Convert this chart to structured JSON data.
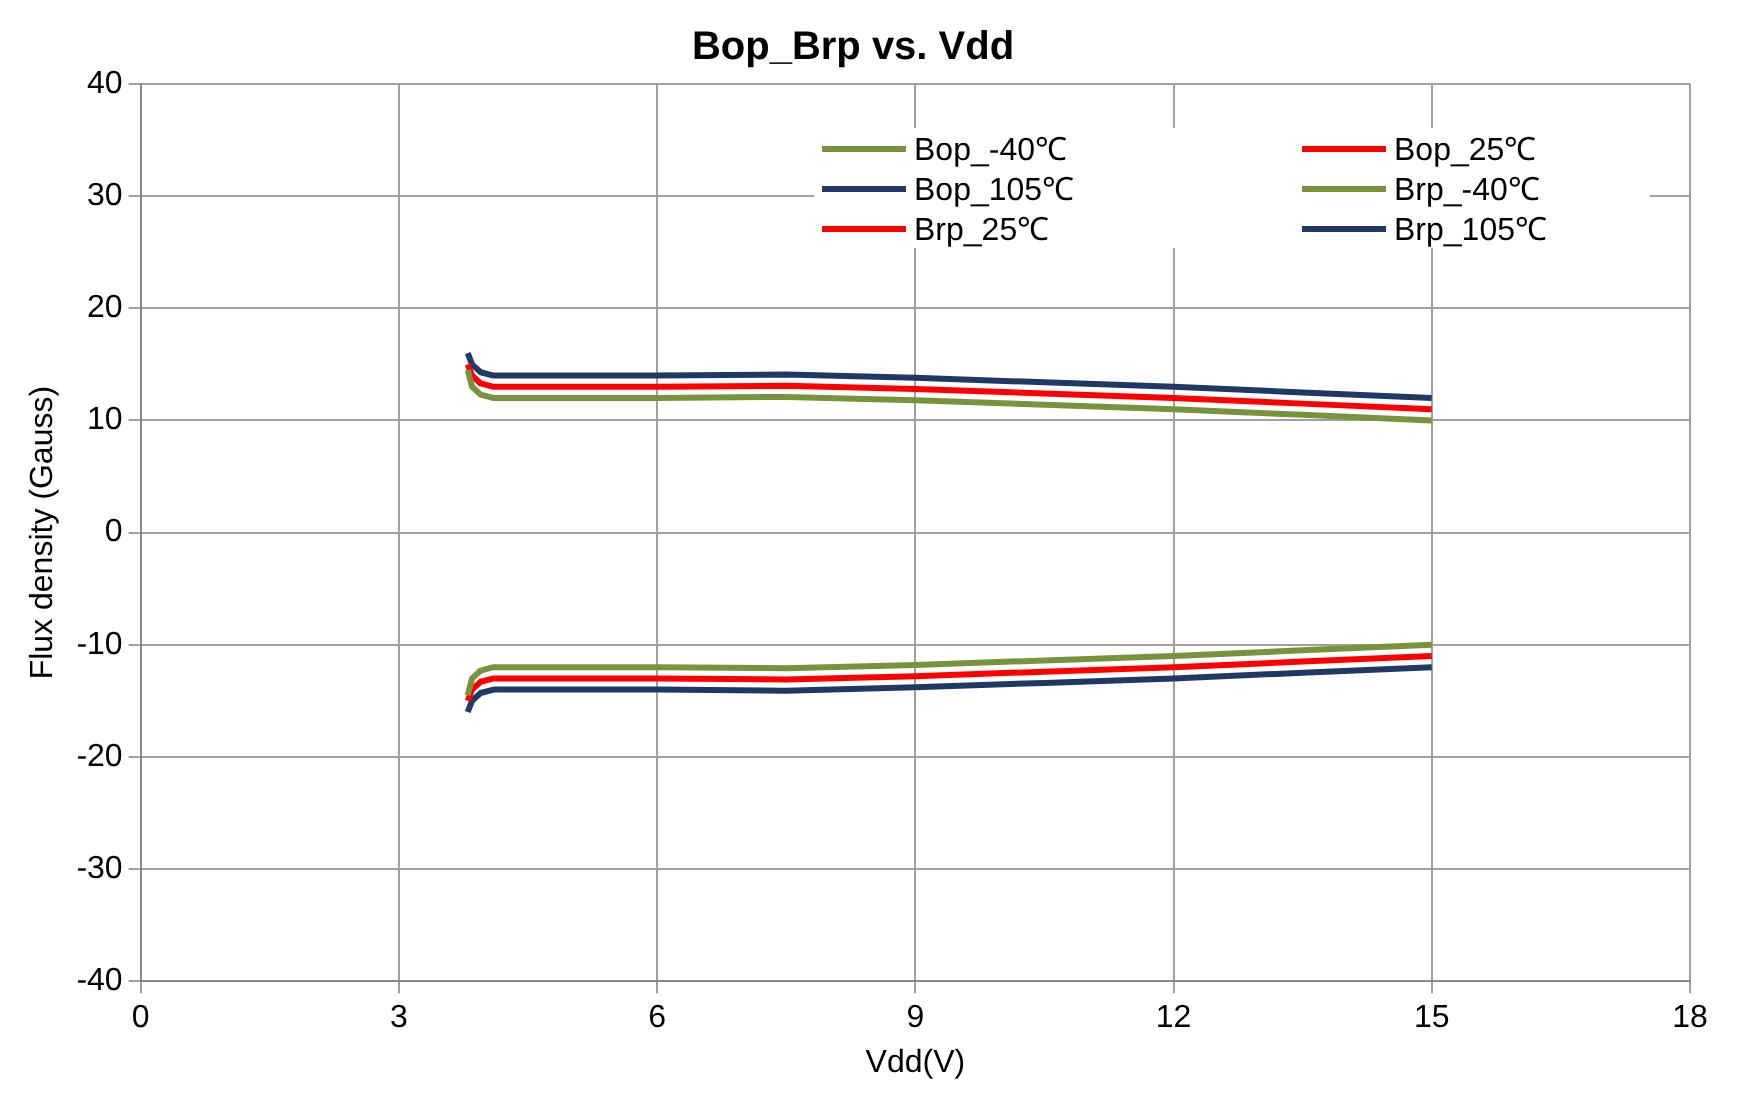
{
  "chart_data": {
    "type": "line",
    "title": "Bop_Brp vs. Vdd",
    "xlabel": "Vdd(V)",
    "ylabel": "Flux density (Gauss)",
    "x": [
      3.8,
      3.85,
      3.95,
      4.1,
      4.5,
      6,
      7.5,
      9,
      10.5,
      12,
      13.5,
      15
    ],
    "xlim": [
      0,
      18
    ],
    "xticks": [
      0,
      3,
      6,
      9,
      12,
      15,
      18
    ],
    "ylim": [
      -40,
      40
    ],
    "yticks": [
      -40,
      -30,
      -20,
      -10,
      0,
      10,
      20,
      30,
      40
    ],
    "grid": true,
    "legend": "top right",
    "marker": "none",
    "line_style": "solid",
    "series": [
      {
        "name": "Bop_-40℃",
        "color": "#77933c",
        "values": [
          14.5,
          13,
          12.3,
          12,
          12,
          12,
          12.1,
          11.8,
          11.4,
          11,
          10.5,
          10
        ]
      },
      {
        "name": "Bop_25℃",
        "color": "#ff0000",
        "values": [
          15,
          14,
          13.3,
          13,
          13,
          13,
          13.1,
          12.8,
          12.4,
          12,
          11.5,
          11
        ]
      },
      {
        "name": "Bop_105℃",
        "color": "#1f3864",
        "values": [
          16,
          15,
          14.3,
          14,
          14,
          14,
          14.1,
          13.8,
          13.4,
          13,
          12.5,
          12
        ]
      },
      {
        "name": "Brp_-40℃",
        "color": "#77933c",
        "values": [
          -14.5,
          -13,
          -12.3,
          -12,
          -12,
          -12,
          -12.1,
          -11.8,
          -11.4,
          -11,
          -10.5,
          -10
        ]
      },
      {
        "name": "Brp_25℃",
        "color": "#ff0000",
        "values": [
          -15,
          -14,
          -13.3,
          -13,
          -13,
          -13,
          -13.1,
          -12.8,
          -12.4,
          -12,
          -11.5,
          -11
        ]
      },
      {
        "name": "Brp_105℃",
        "color": "#1f3864",
        "values": [
          -16,
          -15,
          -14.3,
          -14,
          -14,
          -14,
          -14.1,
          -13.8,
          -13.4,
          -13,
          -12.5,
          -12
        ]
      }
    ]
  }
}
